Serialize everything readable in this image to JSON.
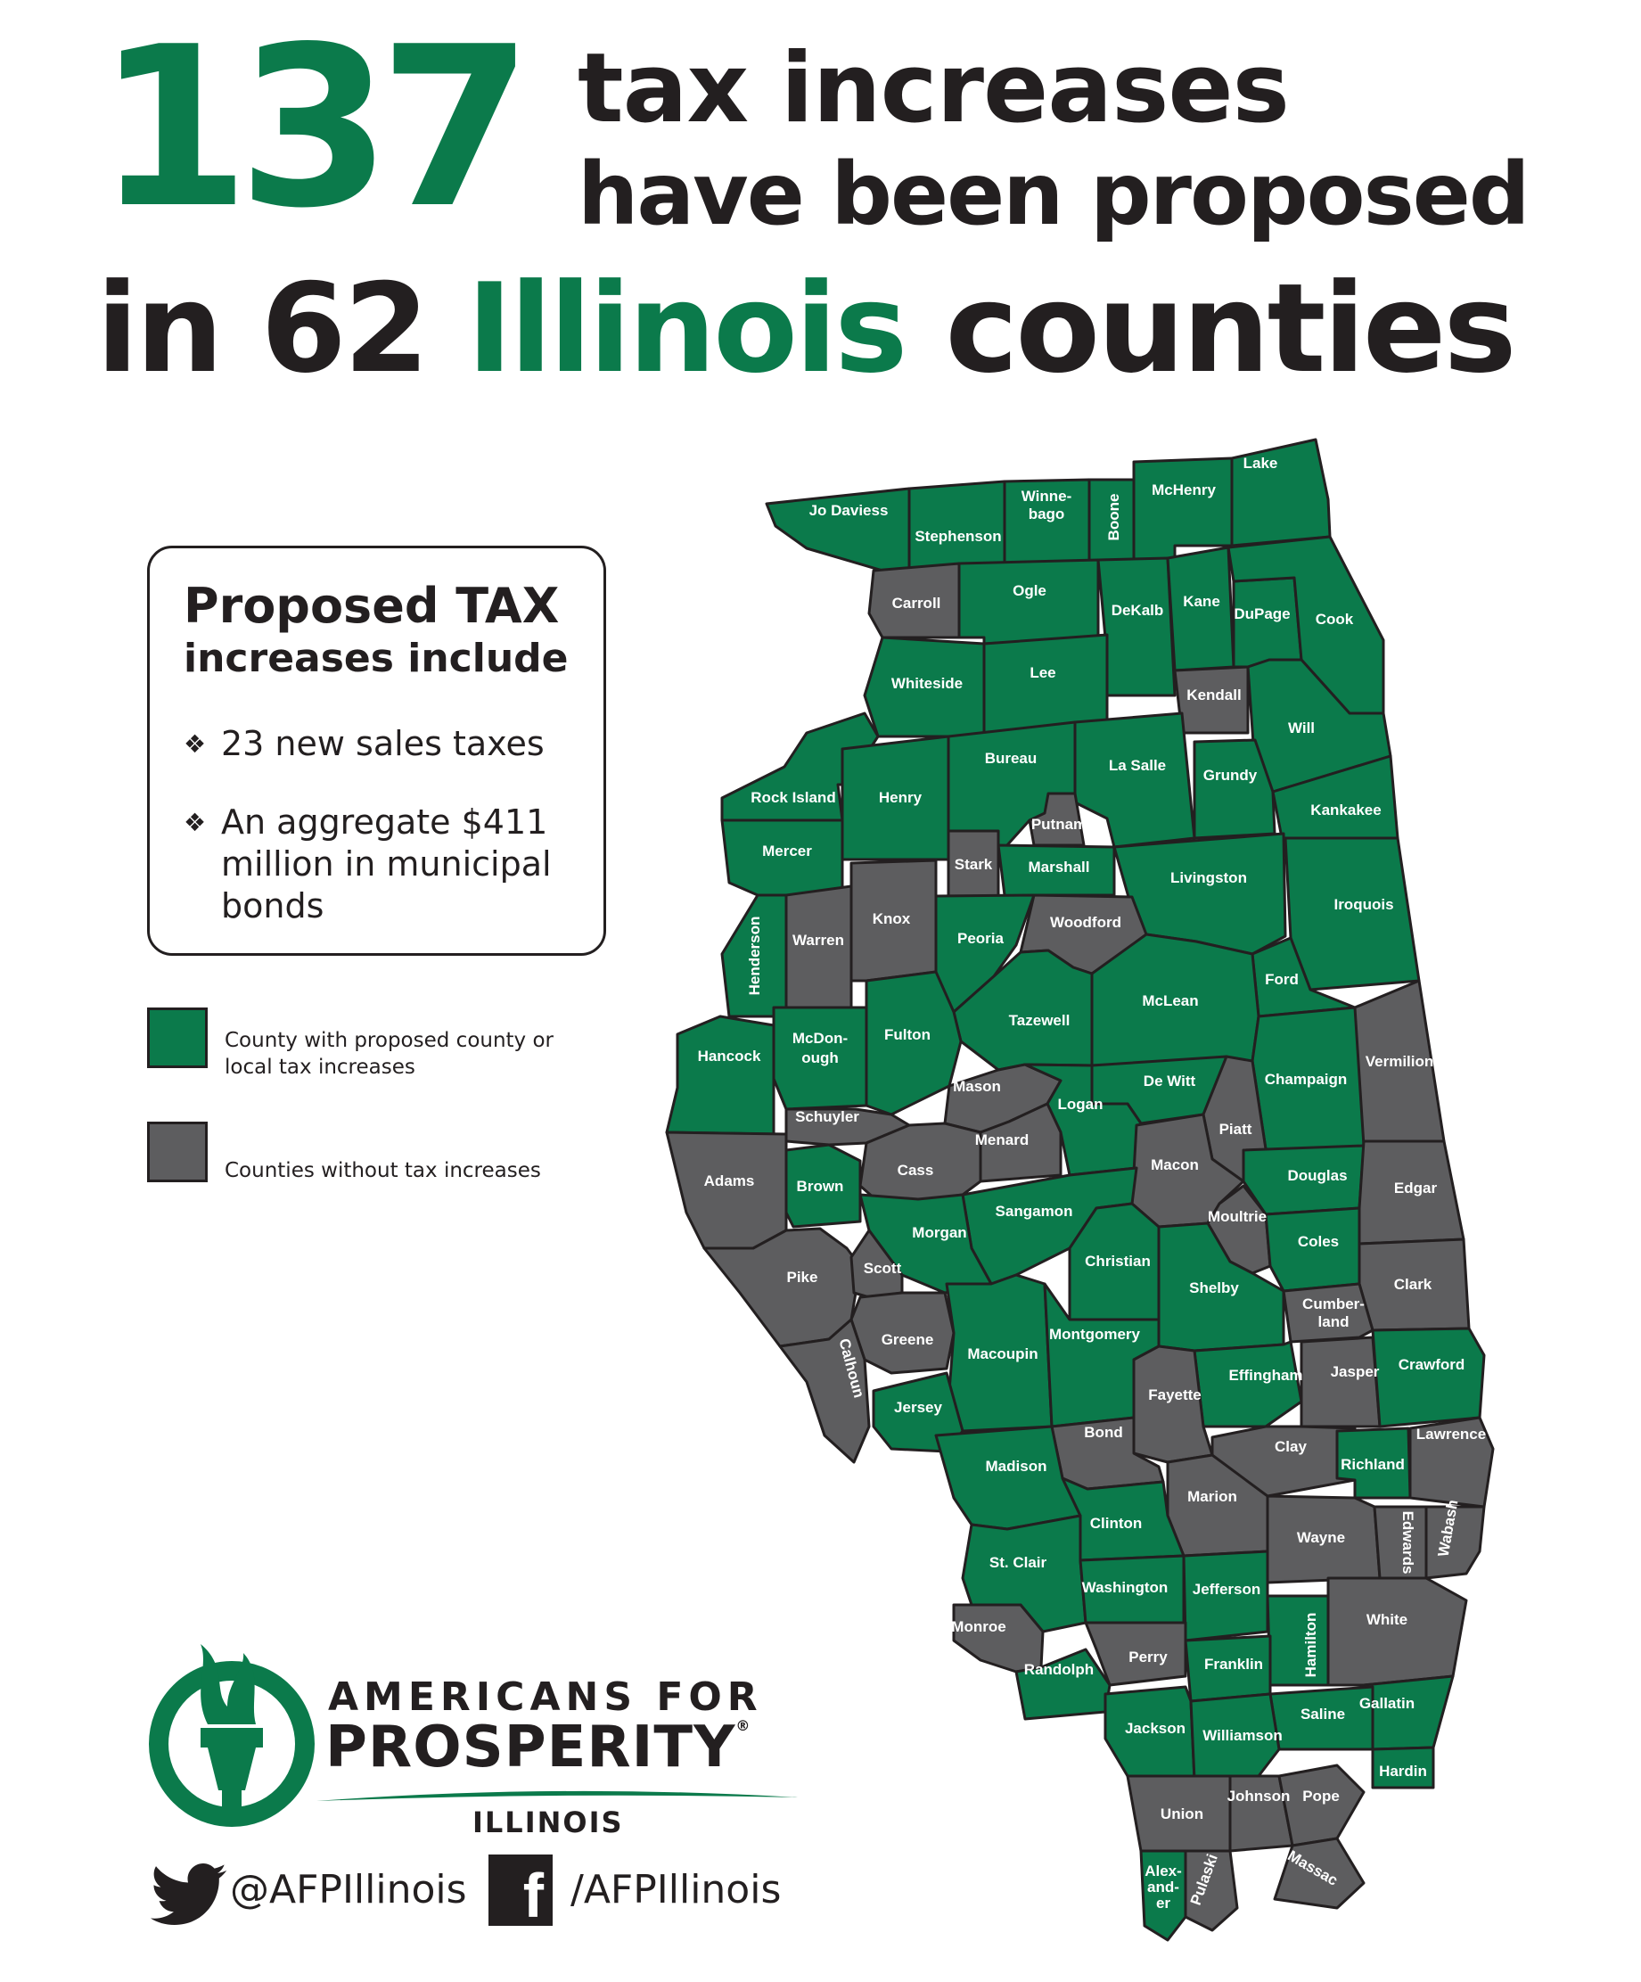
{
  "headline": {
    "number": "137",
    "line1": "tax increases",
    "line2": "have been proposed",
    "line3_a": "in 62",
    "line3_b": "Illinois",
    "line3_c": "counties"
  },
  "info_box": {
    "title": "Proposed TAX",
    "subtitle": "increases include",
    "bullet_mark": "❖",
    "bullets": [
      "23 new sales taxes",
      "An aggregate $411 million in municipal bonds"
    ]
  },
  "legend": [
    {
      "label": "County with proposed county or local tax increases",
      "color": "#0b7a4b"
    },
    {
      "label": "Counties without tax increases",
      "color": "#5d5d5f"
    }
  ],
  "colors": {
    "with_tax": "#0b7a4b",
    "without_tax": "#5d5d5f",
    "border": "#231f20"
  },
  "map": {
    "counties": [
      {
        "name": "Jo Daviess",
        "tax": true
      },
      {
        "name": "Stephenson",
        "tax": true
      },
      {
        "name": "Winne-bago",
        "tax": true
      },
      {
        "name": "Boone",
        "tax": true
      },
      {
        "name": "McHenry",
        "tax": true
      },
      {
        "name": "Lake",
        "tax": true
      },
      {
        "name": "Carroll",
        "tax": false
      },
      {
        "name": "Ogle",
        "tax": true
      },
      {
        "name": "DeKalb",
        "tax": true
      },
      {
        "name": "Kane",
        "tax": true
      },
      {
        "name": "DuPage",
        "tax": true
      },
      {
        "name": "Cook",
        "tax": true
      },
      {
        "name": "Whiteside",
        "tax": true
      },
      {
        "name": "Lee",
        "tax": true
      },
      {
        "name": "Kendall",
        "tax": false
      },
      {
        "name": "Will",
        "tax": true
      },
      {
        "name": "Rock Island",
        "tax": true
      },
      {
        "name": "Henry",
        "tax": true
      },
      {
        "name": "Bureau",
        "tax": true
      },
      {
        "name": "La Salle",
        "tax": true
      },
      {
        "name": "Grundy",
        "tax": true
      },
      {
        "name": "Kankakee",
        "tax": true
      },
      {
        "name": "Mercer",
        "tax": true
      },
      {
        "name": "Putnam",
        "tax": false
      },
      {
        "name": "Stark",
        "tax": false
      },
      {
        "name": "Marshall",
        "tax": true
      },
      {
        "name": "Livingston",
        "tax": true
      },
      {
        "name": "Iroquois",
        "tax": true
      },
      {
        "name": "Henderson",
        "tax": true
      },
      {
        "name": "Warren",
        "tax": false
      },
      {
        "name": "Knox",
        "tax": false
      },
      {
        "name": "Peoria",
        "tax": true
      },
      {
        "name": "Woodford",
        "tax": false
      },
      {
        "name": "Ford",
        "tax": true
      },
      {
        "name": "McLean",
        "tax": true
      },
      {
        "name": "Tazewell",
        "tax": true
      },
      {
        "name": "Fulton",
        "tax": true
      },
      {
        "name": "McDon-ough",
        "tax": true
      },
      {
        "name": "Hancock",
        "tax": true
      },
      {
        "name": "Vermilion",
        "tax": false
      },
      {
        "name": "Champaign",
        "tax": true
      },
      {
        "name": "De Witt",
        "tax": true
      },
      {
        "name": "Mason",
        "tax": false
      },
      {
        "name": "Logan",
        "tax": true
      },
      {
        "name": "Piatt",
        "tax": false
      },
      {
        "name": "Schuyler",
        "tax": false
      },
      {
        "name": "Menard",
        "tax": false
      },
      {
        "name": "Adams",
        "tax": false
      },
      {
        "name": "Brown",
        "tax": true
      },
      {
        "name": "Cass",
        "tax": false
      },
      {
        "name": "Macon",
        "tax": false
      },
      {
        "name": "Douglas",
        "tax": true
      },
      {
        "name": "Edgar",
        "tax": false
      },
      {
        "name": "Sangamon",
        "tax": true
      },
      {
        "name": "Morgan",
        "tax": true
      },
      {
        "name": "Moultrie",
        "tax": false
      },
      {
        "name": "Coles",
        "tax": true
      },
      {
        "name": "Pike",
        "tax": false
      },
      {
        "name": "Scott",
        "tax": false
      },
      {
        "name": "Christian",
        "tax": true
      },
      {
        "name": "Shelby",
        "tax": true
      },
      {
        "name": "Clark",
        "tax": false
      },
      {
        "name": "Cumber-land",
        "tax": false
      },
      {
        "name": "Greene",
        "tax": false
      },
      {
        "name": "Calhoun",
        "tax": false
      },
      {
        "name": "Macoupin",
        "tax": true
      },
      {
        "name": "Montgomery",
        "tax": true
      },
      {
        "name": "Effingham",
        "tax": true
      },
      {
        "name": "Jasper",
        "tax": false
      },
      {
        "name": "Crawford",
        "tax": true
      },
      {
        "name": "Jersey",
        "tax": true
      },
      {
        "name": "Fayette",
        "tax": false
      },
      {
        "name": "Bond",
        "tax": false
      },
      {
        "name": "Madison",
        "tax": true
      },
      {
        "name": "Clay",
        "tax": false
      },
      {
        "name": "Richland",
        "tax": true
      },
      {
        "name": "Lawrence",
        "tax": false
      },
      {
        "name": "Marion",
        "tax": false
      },
      {
        "name": "Clinton",
        "tax": true
      },
      {
        "name": "St. Clair",
        "tax": true
      },
      {
        "name": "Wayne",
        "tax": false
      },
      {
        "name": "Edwards",
        "tax": false
      },
      {
        "name": "Wabash",
        "tax": false
      },
      {
        "name": "Washington",
        "tax": true
      },
      {
        "name": "Jefferson",
        "tax": true
      },
      {
        "name": "Monroe",
        "tax": false
      },
      {
        "name": "Hamilton",
        "tax": true
      },
      {
        "name": "White",
        "tax": false
      },
      {
        "name": "Perry",
        "tax": false
      },
      {
        "name": "Franklin",
        "tax": true
      },
      {
        "name": "Randolph",
        "tax": true
      },
      {
        "name": "Gallatin",
        "tax": true
      },
      {
        "name": "Saline",
        "tax": true
      },
      {
        "name": "Jackson",
        "tax": true
      },
      {
        "name": "Williamson",
        "tax": true
      },
      {
        "name": "Hardin",
        "tax": true
      },
      {
        "name": "Union",
        "tax": false
      },
      {
        "name": "Johnson",
        "tax": false
      },
      {
        "name": "Pope",
        "tax": false
      },
      {
        "name": "Massac",
        "tax": false
      },
      {
        "name": "Alex-and-er",
        "tax": true
      },
      {
        "name": "Pulaski",
        "tax": false
      }
    ]
  },
  "brand": {
    "line1": "AMERICANS FOR",
    "line2": "PROSPERITY",
    "registered": "®",
    "line3": "ILLINOIS",
    "twitter_handle": "@AFPIllinois",
    "facebook_handle": "/AFPIllinois",
    "facebook_glyph": "f",
    "twitter_icon": "twitter-bird-icon",
    "facebook_icon": "facebook-f-icon"
  }
}
